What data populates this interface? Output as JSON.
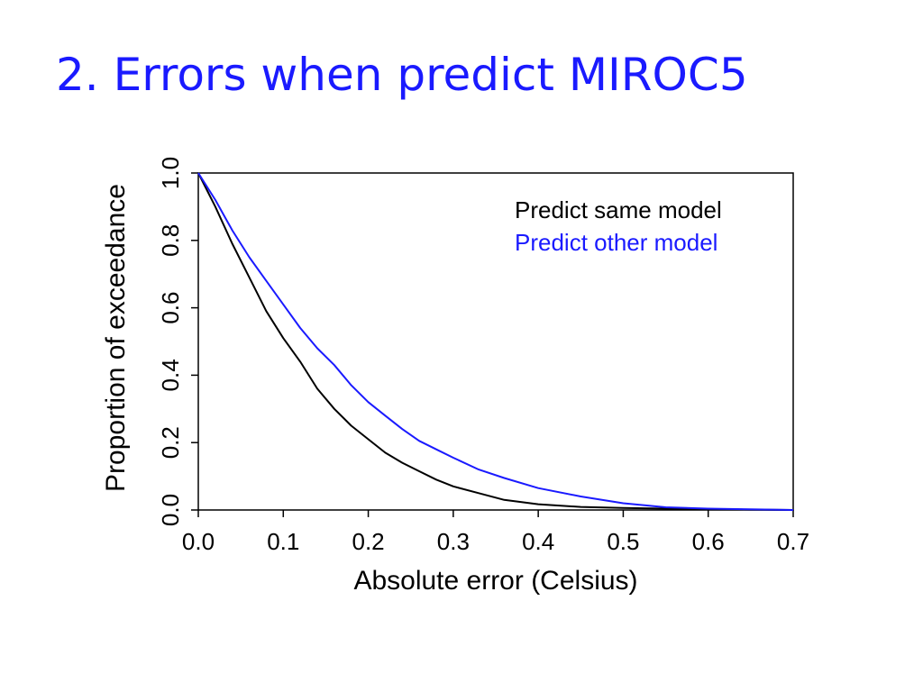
{
  "slide": {
    "title": "2. Errors when predict MIROC5",
    "title_color": "#1a1aff"
  },
  "chart_data": {
    "type": "line",
    "xlabel": "Absolute error (Celsius)",
    "ylabel": "Proportion of exceedance",
    "xlim": [
      0.0,
      0.7
    ],
    "ylim": [
      0.0,
      1.0
    ],
    "x_ticks": [
      "0.0",
      "0.1",
      "0.2",
      "0.3",
      "0.4",
      "0.5",
      "0.6",
      "0.7"
    ],
    "y_ticks": [
      "0.0",
      "0.2",
      "0.4",
      "0.6",
      "0.8",
      "1.0"
    ],
    "grid": false,
    "legend_position": "top-right",
    "series": [
      {
        "name": "Predict same model",
        "color": "#000000",
        "x": [
          0.0,
          0.02,
          0.04,
          0.06,
          0.08,
          0.1,
          0.12,
          0.14,
          0.16,
          0.18,
          0.2,
          0.22,
          0.24,
          0.26,
          0.28,
          0.3,
          0.33,
          0.36,
          0.4,
          0.45,
          0.5,
          0.55,
          0.6,
          0.65,
          0.7
        ],
        "y": [
          1.0,
          0.9,
          0.79,
          0.69,
          0.59,
          0.51,
          0.44,
          0.36,
          0.3,
          0.25,
          0.21,
          0.17,
          0.14,
          0.115,
          0.09,
          0.07,
          0.05,
          0.03,
          0.017,
          0.009,
          0.006,
          0.004,
          0.003,
          0.001,
          0.0
        ]
      },
      {
        "name": "Predict other model",
        "color": "#1a1aff",
        "x": [
          0.0,
          0.02,
          0.04,
          0.06,
          0.08,
          0.1,
          0.12,
          0.14,
          0.16,
          0.18,
          0.2,
          0.22,
          0.24,
          0.26,
          0.28,
          0.3,
          0.33,
          0.36,
          0.4,
          0.45,
          0.5,
          0.55,
          0.6,
          0.65,
          0.7
        ],
        "y": [
          1.0,
          0.92,
          0.83,
          0.75,
          0.68,
          0.61,
          0.54,
          0.48,
          0.43,
          0.37,
          0.32,
          0.28,
          0.24,
          0.205,
          0.18,
          0.155,
          0.12,
          0.095,
          0.065,
          0.04,
          0.02,
          0.008,
          0.004,
          0.002,
          0.0
        ]
      }
    ]
  }
}
